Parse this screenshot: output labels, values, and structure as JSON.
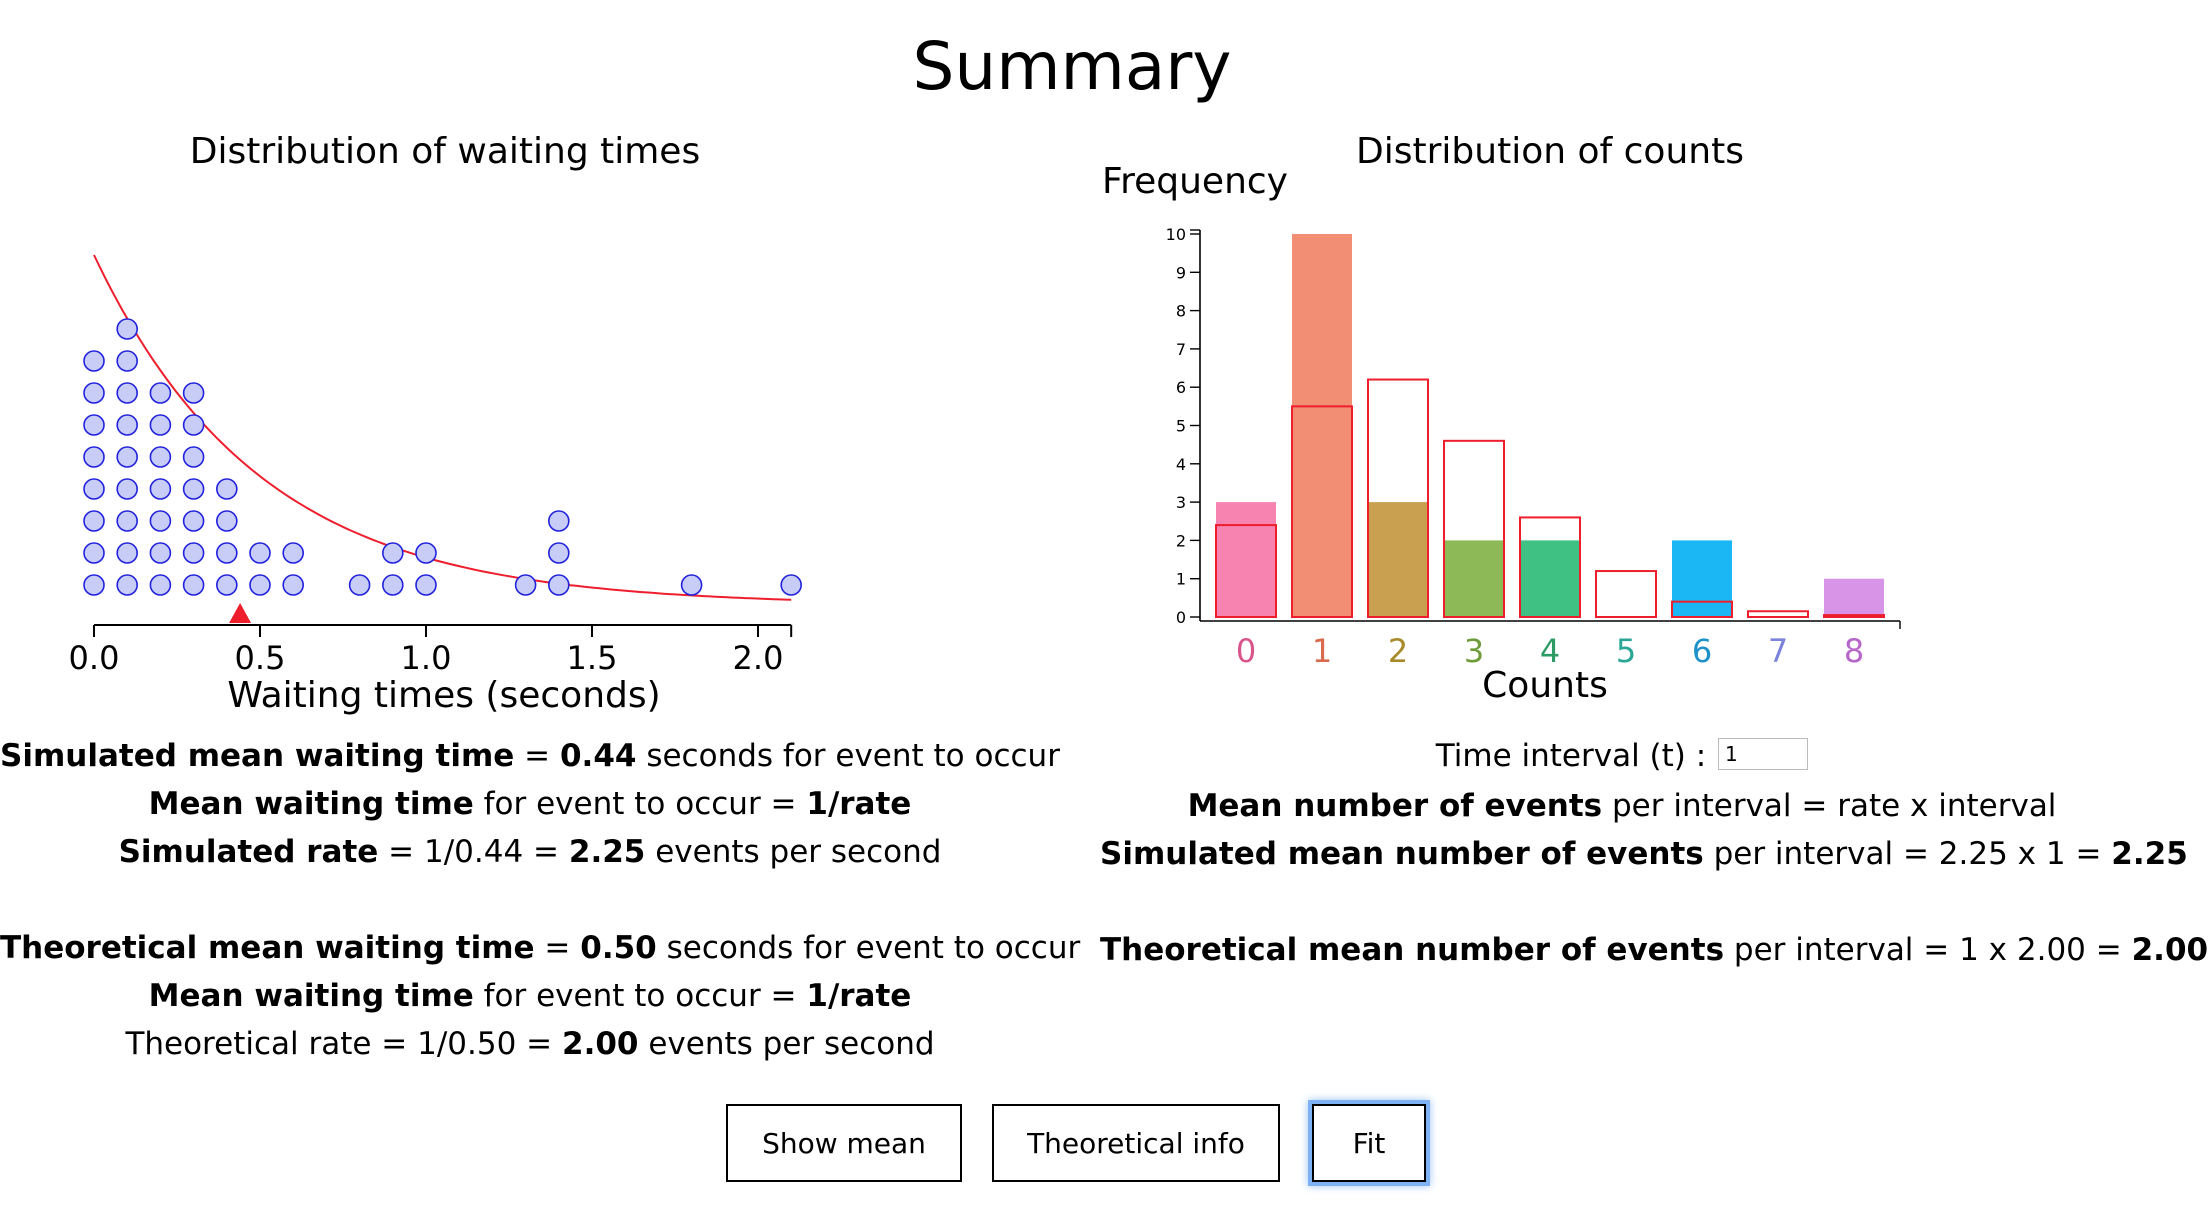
{
  "page": {
    "title": "Summary"
  },
  "waiting_chart": {
    "title": "Distribution of waiting times",
    "xlabel": "Waiting times (seconds)",
    "ticks": [
      "0.0",
      "0.5",
      "1.0",
      "1.5",
      "2.0"
    ]
  },
  "counts_chart": {
    "title": "Distribution of counts",
    "ylabel": "Frequency",
    "xlabel": "Counts",
    "y_ticks": [
      "0",
      "1",
      "2",
      "3",
      "4",
      "5",
      "6",
      "7",
      "8",
      "9",
      "10"
    ],
    "x_ticks": [
      "0",
      "1",
      "2",
      "3",
      "4",
      "5",
      "6",
      "7",
      "8"
    ]
  },
  "chart_data": [
    {
      "type": "scatter",
      "title": "Distribution of waiting times",
      "xlabel": "Waiting times (seconds)",
      "xlim": [
        0.0,
        2.1
      ],
      "dot_stacks": [
        {
          "x": 0.0,
          "count": 8
        },
        {
          "x": 0.1,
          "count": 9
        },
        {
          "x": 0.2,
          "count": 7
        },
        {
          "x": 0.3,
          "count": 7
        },
        {
          "x": 0.4,
          "count": 4
        },
        {
          "x": 0.5,
          "count": 2
        },
        {
          "x": 0.6,
          "count": 2
        },
        {
          "x": 0.8,
          "count": 1
        },
        {
          "x": 0.9,
          "count": 2
        },
        {
          "x": 1.0,
          "count": 2
        },
        {
          "x": 1.3,
          "count": 1
        },
        {
          "x": 1.4,
          "count": 3
        },
        {
          "x": 1.8,
          "count": 1
        },
        {
          "x": 2.1,
          "count": 1
        }
      ],
      "mean_marker": 0.44,
      "fit_curve": "exponential, rate 2"
    },
    {
      "type": "bar",
      "title": "Distribution of counts",
      "xlabel": "Counts",
      "ylabel": "Frequency",
      "ylim": [
        0,
        10
      ],
      "categories": [
        "0",
        "1",
        "2",
        "3",
        "4",
        "5",
        "6",
        "7",
        "8"
      ],
      "series": [
        {
          "values": [
            3,
            10,
            3,
            2,
            2,
            0,
            2,
            0,
            1
          ]
        },
        {
          "values": [
            2.4,
            5.5,
            6.2,
            4.6,
            2.6,
            1.2,
            0.4,
            0.15,
            0.05
          ]
        }
      ],
      "bar_colors": [
        "#f683b0",
        "#f28e74",
        "#c9a04f",
        "#8dba56",
        "#3ec183",
        "#2bbbaa",
        "#1bb7f5",
        "#8a95ea",
        "#d894e6"
      ],
      "tick_colors": [
        "#d9558c",
        "#d96a4e",
        "#a88a2b",
        "#6f9c3a",
        "#2c9c64",
        "#2aa596",
        "#1f91c9",
        "#7b83dc",
        "#b766c9"
      ],
      "fit_color": "#ee1e2d"
    }
  ],
  "simulated": {
    "line1": {
      "label": "Simulated mean waiting time",
      "eq": " = ",
      "value": "0.44",
      "rest": " seconds for event to occur"
    },
    "line2": {
      "label": "Mean waiting time",
      "mid": " for event to occur = ",
      "value": "1/rate"
    },
    "line3": {
      "label": "Simulated rate",
      "mid": " = 1/0.44 = ",
      "value": "2.25",
      "rest": " events per second"
    }
  },
  "theoretical": {
    "line1": {
      "label": "Theoretical mean waiting time",
      "eq": " = ",
      "value": "0.50",
      "rest": " seconds for event to occur"
    },
    "line2": {
      "label": "Mean waiting time",
      "mid": " for event to occur = ",
      "value": "1/rate"
    },
    "line3": {
      "label": "Theoretical rate = 1/0.50 = ",
      "value": "2.00",
      "rest": " events per second"
    }
  },
  "counts_info": {
    "interval_label": "Time interval (t) :",
    "interval_value": "1",
    "line1": {
      "label": "Mean number of events",
      "rest": " per interval = rate x interval"
    },
    "line2": {
      "label": "Simulated mean number of events",
      "mid": " per interval = 2.25 x 1 = ",
      "value": "2.25"
    },
    "line3": {
      "label": "Theoretical mean number of events",
      "mid": " per interval = 1 x 2.00 = ",
      "value": "2.00"
    }
  },
  "buttons": {
    "show_mean": "Show mean",
    "theoretical_info": "Theoretical info",
    "fit": "Fit"
  },
  "colors": {
    "dot_fill": "#c8cdf7",
    "dot_stroke": "#2222dd",
    "curve": "#ee1e2d",
    "mean_marker": "#ee1e2d",
    "focus_ring": "#7fb2f5"
  }
}
